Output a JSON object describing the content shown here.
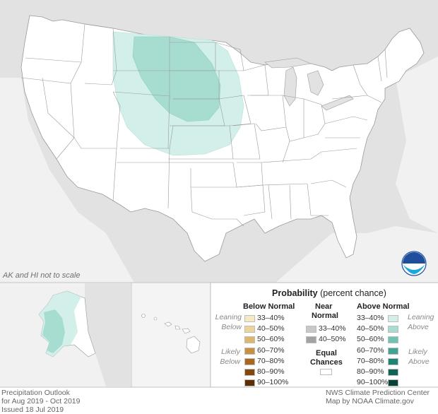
{
  "map_note": "AK and HI not to scale",
  "legend": {
    "title": "Probability",
    "title_suffix": "(percent chance)",
    "below": {
      "header": "Below Normal",
      "leaning": [
        "Leaning",
        "Below"
      ],
      "likely": [
        "Likely",
        "Below"
      ],
      "rows": [
        {
          "label": "33–40%",
          "color": "#f6e8c3"
        },
        {
          "label": "40–50%",
          "color": "#ecd49a"
        },
        {
          "label": "50–60%",
          "color": "#ddb76e"
        },
        {
          "label": "60–70%",
          "color": "#c9903f"
        },
        {
          "label": "70–80%",
          "color": "#a8691f"
        },
        {
          "label": "80–90%",
          "color": "#84480f"
        },
        {
          "label": "90–100%",
          "color": "#5b2e05"
        }
      ]
    },
    "near": {
      "header": [
        "Near",
        "Normal"
      ],
      "rows": [
        {
          "label": "33–40%",
          "color": "#c8c8c8"
        },
        {
          "label": "40–50%",
          "color": "#a3a3a3"
        }
      ]
    },
    "equal": {
      "label": [
        "Equal",
        "Chances"
      ],
      "color": "#ffffff"
    },
    "above": {
      "header": "Above Normal",
      "leaning": [
        "Leaning",
        "Above"
      ],
      "likely": [
        "Likely",
        "Above"
      ],
      "rows": [
        {
          "label": "33–40%",
          "color": "#d2efea"
        },
        {
          "label": "40–50%",
          "color": "#a7ddd1"
        },
        {
          "label": "50–60%",
          "color": "#6fc3b2"
        },
        {
          "label": "60–70%",
          "color": "#3ea592"
        },
        {
          "label": "70–80%",
          "color": "#1f8573"
        },
        {
          "label": "80–90%",
          "color": "#0f6555"
        },
        {
          "label": "90–100%",
          "color": "#08433a"
        }
      ]
    }
  },
  "footer_left": [
    "Precipitation Outlook",
    "for Aug 2019 - Oct 2019",
    "Issued 18 Jul 2019"
  ],
  "footer_right": [
    "NWS Climate Prediction Center",
    "Map by NOAA Climate.gov"
  ],
  "logo_text": "NOAA",
  "colors": {
    "land": "#ffffff",
    "neighbor": "#e2e2e2",
    "border": "#9a9a9a",
    "above_33_40": "#d2efea",
    "above_40_50": "#a7ddd1"
  }
}
